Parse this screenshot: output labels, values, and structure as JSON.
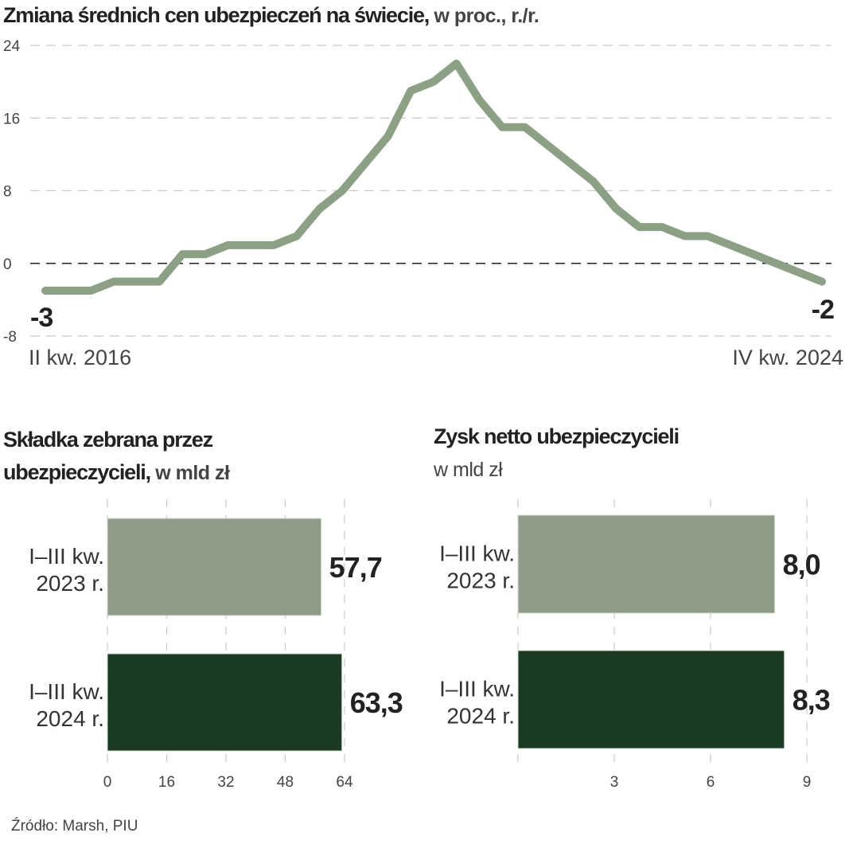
{
  "chart_data": [
    {
      "type": "line",
      "title": "Zmiana średnich cen ubezpieczeń na świecie,",
      "subtitle": "w proc., r./r.",
      "x_start_label": "II kw. 2016",
      "x_end_label": "IV kw. 2024",
      "ylim": [
        -8,
        24
      ],
      "yticks": [
        24,
        16,
        8,
        0,
        -8
      ],
      "grid": true,
      "color": "#8ba085",
      "values": [
        -3,
        -3,
        -3,
        -2,
        -2,
        -2,
        1,
        1,
        2,
        2,
        2,
        3,
        6,
        8,
        11,
        14,
        19,
        20,
        22,
        18,
        15,
        15,
        13,
        11,
        9,
        6,
        4,
        4,
        3,
        3,
        2,
        1,
        0,
        -1,
        -2
      ],
      "start_label": "-3",
      "end_label": "-2"
    },
    {
      "type": "bar",
      "orientation": "horizontal",
      "title": "Składka zebrana przez ubezpieczycieli,",
      "title_line1": "Składka zebrana przez",
      "title_line2": "ubezpieczycieli,",
      "subtitle": "w mld zł",
      "categories": [
        [
          "I–III kw.",
          "2023 r."
        ],
        [
          "I–III kw.",
          "2024 r."
        ]
      ],
      "values": [
        57.7,
        63.3
      ],
      "value_labels": [
        "57,7",
        "63,3"
      ],
      "colors": [
        "#8e9c88",
        "#1b3a24"
      ],
      "xlim": [
        0,
        64
      ],
      "xticks": [
        "0",
        "16",
        "32",
        "48",
        "64"
      ],
      "xtick_values": [
        0,
        16,
        32,
        48,
        64
      ],
      "grid": true
    },
    {
      "type": "bar",
      "orientation": "horizontal",
      "title": "Zysk netto ubezpieczycieli",
      "subtitle": "w mld zł",
      "categories": [
        [
          "I–III kw.",
          "2023 r."
        ],
        [
          "I–III kw.",
          "2024 r."
        ]
      ],
      "values": [
        8.0,
        8.3
      ],
      "value_labels": [
        "8,0",
        "8,3"
      ],
      "colors": [
        "#8e9c88",
        "#1b3a24"
      ],
      "xlim": [
        0,
        9
      ],
      "xticks": [
        "3",
        "6",
        "9"
      ],
      "xtick_values": [
        3,
        6,
        9
      ],
      "grid": true
    }
  ],
  "source": "Źródło: Marsh, PIU"
}
